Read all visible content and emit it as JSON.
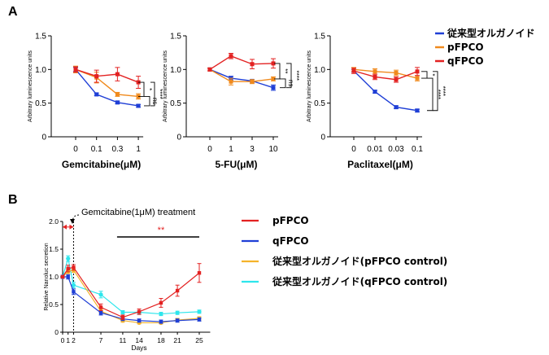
{
  "panels": {
    "a": "A",
    "b": "B"
  },
  "chart_data": [
    {
      "type": "line",
      "panel": "A",
      "xlabel": "Gemcitabine(μM)",
      "ylabel": "Arbitrary luminescence units",
      "categories": [
        "0",
        "0.1",
        "0.3",
        "1"
      ],
      "ylim": [
        0,
        1.5
      ],
      "yticks": [
        "0",
        "0.5",
        "1.0",
        "1.5"
      ],
      "series": [
        {
          "name": "従来型オルガノイド",
          "color": "#1f3fd6",
          "values": [
            1.0,
            0.63,
            0.51,
            0.46
          ],
          "err": [
            0.03,
            0.02,
            0.02,
            0.02
          ]
        },
        {
          "name": "pFPCO",
          "color": "#f08a1d",
          "values": [
            1.0,
            0.88,
            0.63,
            0.6
          ],
          "err": [
            0.05,
            0.08,
            0.03,
            0.04
          ]
        },
        {
          "name": "qFPCO",
          "color": "#e32222",
          "values": [
            1.0,
            0.9,
            0.93,
            0.81
          ],
          "err": [
            0.04,
            0.09,
            0.1,
            0.09
          ]
        }
      ],
      "brackets": [
        {
          "from": "qFPCO",
          "to": "pFPCO",
          "label": "*"
        },
        {
          "from": "pFPCO",
          "to": "従来型オルガノイド",
          "label": "ns"
        },
        {
          "from": "qFPCO",
          "to": "従来型オルガノイド",
          "label": "****"
        }
      ]
    },
    {
      "type": "line",
      "panel": "A",
      "xlabel": "5-FU(μM)",
      "ylabel": "Arbitrary luminescence units",
      "categories": [
        "0",
        "1",
        "3",
        "10"
      ],
      "ylim": [
        0,
        1.5
      ],
      "yticks": [
        "0",
        "0.5",
        "1.0",
        "1.5"
      ],
      "series": [
        {
          "name": "従来型オルガノイド",
          "color": "#1f3fd6",
          "values": [
            1.0,
            0.87,
            0.83,
            0.73
          ],
          "err": [
            0.02,
            0.03,
            0.02,
            0.04
          ]
        },
        {
          "name": "pFPCO",
          "color": "#f08a1d",
          "values": [
            1.0,
            0.82,
            0.82,
            0.86
          ],
          "err": [
            0.02,
            0.05,
            0.03,
            0.03
          ]
        },
        {
          "name": "qFPCO",
          "color": "#e32222",
          "values": [
            1.0,
            1.2,
            1.08,
            1.09
          ],
          "err": [
            0.02,
            0.04,
            0.07,
            0.07
          ]
        }
      ],
      "brackets": [
        {
          "from": "qFPCO",
          "to": "pFPCO",
          "label": "**"
        },
        {
          "from": "pFPCO",
          "to": "従来型オルガノイド",
          "label": "ns"
        },
        {
          "from": "qFPCO",
          "to": "従来型オルガノイド",
          "label": "****"
        }
      ]
    },
    {
      "type": "line",
      "panel": "A",
      "xlabel": "Paclitaxel(μM)",
      "ylabel": "Arbitrary luminescence units",
      "categories": [
        "0",
        "0.01",
        "0.03",
        "0.1"
      ],
      "ylim": [
        0,
        1.5
      ],
      "yticks": [
        "0",
        "0.5",
        "1.0",
        "1.5"
      ],
      "series": [
        {
          "name": "従来型オルガノイド",
          "color": "#1f3fd6",
          "values": [
            0.98,
            0.67,
            0.44,
            0.39
          ],
          "err": [
            0.02,
            0.02,
            0.02,
            0.02
          ]
        },
        {
          "name": "pFPCO",
          "color": "#f08a1d",
          "values": [
            1.0,
            0.97,
            0.95,
            0.87
          ],
          "err": [
            0.03,
            0.04,
            0.04,
            0.04
          ]
        },
        {
          "name": "qFPCO",
          "color": "#e32222",
          "values": [
            0.98,
            0.89,
            0.85,
            0.97
          ],
          "err": [
            0.04,
            0.04,
            0.04,
            0.06
          ]
        }
      ],
      "brackets": [
        {
          "from": "qFPCO",
          "to": "pFPCO",
          "label": "*"
        },
        {
          "from": "pFPCO",
          "to": "従来型オルガノイド",
          "label": "****"
        },
        {
          "from": "qFPCO",
          "to": "従来型オルガノイド",
          "label": "****"
        }
      ]
    },
    {
      "type": "line",
      "panel": "B",
      "xlabel": "Days",
      "ylabel": "Relative Nanoluc secretion",
      "xticks": [
        0,
        1,
        2,
        7,
        11,
        14,
        18,
        21,
        25
      ],
      "xlim": [
        0,
        27
      ],
      "ylim": [
        0,
        2.0
      ],
      "yticks": [
        "0",
        "0.5",
        "1.0",
        "1.5",
        "2.0"
      ],
      "treatment_label": "Gemcitabine(1μM) treatment",
      "treatment_span": [
        0,
        2
      ],
      "significance": {
        "label": "**",
        "from": 11,
        "to": 25,
        "y": 1.72
      },
      "series": [
        {
          "name": "pFPCO",
          "color": "#e32222",
          "x": [
            0,
            1,
            2,
            7,
            11,
            14,
            18,
            21,
            25
          ],
          "y": [
            1.0,
            1.15,
            1.17,
            0.45,
            0.27,
            0.37,
            0.53,
            0.75,
            1.07
          ],
          "err": [
            0.02,
            0.06,
            0.05,
            0.06,
            0.04,
            0.05,
            0.08,
            0.1,
            0.17
          ]
        },
        {
          "name": "qFPCO",
          "color": "#1f3fd6",
          "x": [
            0,
            1,
            2,
            7,
            11,
            14,
            18,
            21,
            25
          ],
          "y": [
            1.0,
            1.0,
            0.73,
            0.35,
            0.24,
            0.21,
            0.19,
            0.21,
            0.23
          ],
          "err": [
            0.03,
            0.04,
            0.05,
            0.04,
            0.03,
            0.03,
            0.03,
            0.03,
            0.03
          ]
        },
        {
          "name": "従来型オルガノイド(pFPCO control)",
          "color": "#f5b32a",
          "x": [
            0,
            1,
            2,
            7,
            11,
            14,
            18,
            21,
            25
          ],
          "y": [
            1.0,
            1.1,
            1.12,
            0.38,
            0.21,
            0.17,
            0.17,
            0.22,
            0.25
          ],
          "err": [
            0.02,
            0.04,
            0.04,
            0.03,
            0.03,
            0.02,
            0.02,
            0.03,
            0.03
          ]
        },
        {
          "name": "従来型オルガノイド(qFPCO control)",
          "color": "#2ee6ec",
          "x": [
            0,
            1,
            2,
            7,
            11,
            14,
            18,
            21,
            25
          ],
          "y": [
            1.0,
            1.33,
            0.85,
            0.68,
            0.36,
            0.36,
            0.33,
            0.35,
            0.37
          ],
          "err": [
            0.02,
            0.05,
            0.05,
            0.06,
            0.03,
            0.03,
            0.03,
            0.03,
            0.03
          ]
        }
      ]
    }
  ],
  "legend_a": [
    {
      "label": "従来型オルガノイド",
      "color": "#1f3fd6"
    },
    {
      "label": "pFPCO",
      "color": "#f08a1d"
    },
    {
      "label": "qFPCO",
      "color": "#e32222"
    }
  ],
  "legend_b": [
    {
      "label": "pFPCO",
      "color": "#e32222"
    },
    {
      "label": "qFPCO",
      "color": "#1f3fd6"
    },
    {
      "label": "従来型オルガノイド(pFPCO control)",
      "color": "#f5b32a"
    },
    {
      "label": "従来型オルガノイド(qFPCO control)",
      "color": "#2ee6ec"
    }
  ]
}
